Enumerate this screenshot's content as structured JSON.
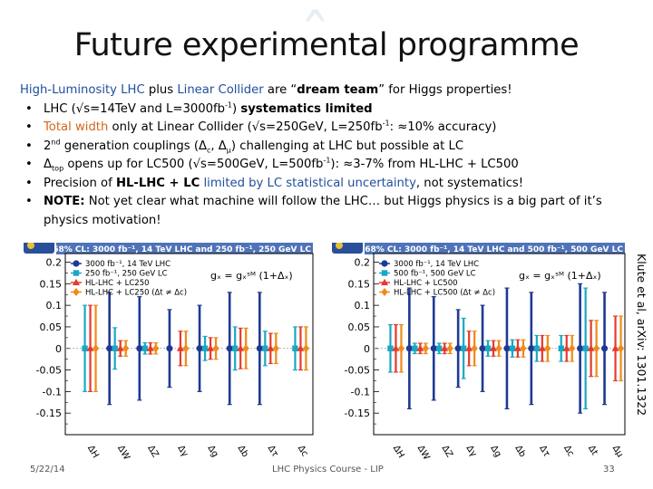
{
  "slide": {
    "title": "Future experimental programme",
    "lead": {
      "p1": "High-Luminosity LHC",
      "p2": " plus ",
      "p3": "Linear Collider",
      "p4": " are “",
      "p5": "dream team",
      "p6": "” for Higgs properties!"
    },
    "bullets": [
      {
        "a": "LHC (√s=14TeV and L=3000fb",
        "sup": "-1",
        "b": ") ",
        "c": "systematics limited"
      },
      {
        "a": "Total width",
        "b": " only at Linear Collider (√s=250GeV, L=250fb",
        "sup": "-1",
        "c": ": ≈10% accuracy)"
      },
      {
        "a": "2",
        "sup": "nd",
        "b": " generation couplings (Δ",
        "sub1": "c",
        "c": ", Δ",
        "sub2": "μ",
        "d": ") challenging at LHC but possible at LC"
      },
      {
        "a": "Δ",
        "sub": "top",
        "b": " opens up for LC500 (√s=500GeV, L=500fb",
        "sup": "-1",
        "c": "): ≈3-7% from HL-LHC + LC500"
      },
      {
        "a": "Precision of ",
        "b": "HL-LHC + LC",
        "c": " limited by LC statistical uncertainty",
        "d": ", not systematics!"
      },
      {
        "a": "NOTE:",
        "b": " Not yet clear what machine will follow the LHC… but Higgs physics is a big part of it’s physics motivation!"
      }
    ],
    "side_reference": "Klute et al, arXiv: 1301.1322",
    "footer": {
      "date": "5/22/14",
      "course": "LHC Physics Course - LIP",
      "page": "33"
    }
  },
  "colors": {
    "lhc3000": "#1f3a93",
    "lhc14": "#1f3a93",
    "lc250": "#1aa7c4",
    "lc500": "#1aa7c4",
    "hllhc_lc": "#e53b2c",
    "hllhc_lc_nc": "#f08a19",
    "header_bg": "#4f73b8"
  },
  "chart_data": [
    {
      "type": "scatter",
      "header": "68% CL: 3000 fb⁻¹, 14 TeV LHC and 250 fb⁻¹, 250 GeV LC",
      "formula": "gₓ = gₓˢᴹ (1+Δₓ)",
      "ylim": [
        -0.2,
        0.22
      ],
      "yticks": [
        "0.2",
        "0.15",
        "0.1",
        "0.05",
        "0",
        "-0.05",
        "-0.1",
        "-0.15"
      ],
      "categories": [
        "ΔH",
        "ΔW",
        "ΔZ",
        "Δγ",
        "Δg",
        "Δb",
        "Δτ",
        "Δc"
      ],
      "series": [
        {
          "name": "3000 fb⁻¹, 14 TeV LHC",
          "color": "#1f3a93",
          "values": [
            null,
            0.13,
            0.12,
            0.09,
            0.1,
            0.13,
            0.13,
            null
          ]
        },
        {
          "name": "250 fb⁻¹, 250 GeV LC",
          "color": "#1aa7c4",
          "values": [
            0.1,
            0.048,
            0.013,
            null,
            0.028,
            0.05,
            0.04,
            0.05
          ]
        },
        {
          "name": "HL-LHC + LC250",
          "color": "#e53b2c",
          "values": [
            0.1,
            0.018,
            0.013,
            0.04,
            0.025,
            0.047,
            0.035,
            0.05
          ]
        },
        {
          "name": "HL-LHC + LC250 (Δt ≠ Δc)",
          "color": "#f08a19",
          "values": [
            0.1,
            0.018,
            0.013,
            0.04,
            0.025,
            0.047,
            0.035,
            0.05
          ]
        }
      ],
      "legend": [
        "3000 fb⁻¹, 14 TeV LHC",
        "250 fb⁻¹, 250 GeV LC",
        "HL-LHC + LC250",
        "HL-LHC + LC250 (Δt ≠ Δc)"
      ]
    },
    {
      "type": "scatter",
      "header": "68% CL: 3000 fb⁻¹, 14 TeV LHC and 500 fb⁻¹, 500 GeV LC",
      "formula": "gₓ = gₓˢᴹ (1+Δₓ)",
      "ylim": [
        -0.2,
        0.22
      ],
      "yticks": [
        "0.2",
        "0.15",
        "0.1",
        "0.05",
        "0",
        "-0.05",
        "-0.1",
        "-0.15"
      ],
      "categories": [
        "ΔH",
        "ΔW",
        "ΔZ",
        "Δγ",
        "Δg",
        "Δb",
        "Δτ",
        "Δc",
        "Δt",
        "Δμ"
      ],
      "series": [
        {
          "name": "3000 fb⁻¹, 14 TeV LHC",
          "color": "#1f3a93",
          "values": [
            null,
            0.14,
            0.12,
            0.09,
            0.1,
            0.14,
            0.13,
            null,
            0.15,
            0.13
          ]
        },
        {
          "name": "500 fb⁻¹, 500 GeV LC",
          "color": "#1aa7c4",
          "values": [
            0.055,
            0.012,
            0.012,
            0.07,
            0.018,
            0.02,
            0.03,
            0.03,
            0.14,
            null
          ]
        },
        {
          "name": "HL-LHC + LC500",
          "color": "#e53b2c",
          "values": [
            0.055,
            0.012,
            0.012,
            0.04,
            0.018,
            0.02,
            0.03,
            0.03,
            0.065,
            0.075
          ]
        },
        {
          "name": "HL-LHC + LC500 (Δt ≠ Δc)",
          "color": "#f08a19",
          "values": [
            0.055,
            0.012,
            0.012,
            0.04,
            0.018,
            0.02,
            0.03,
            0.03,
            0.065,
            0.075
          ]
        }
      ],
      "legend": [
        "3000 fb⁻¹, 14 TeV LHC",
        "500 fb⁻¹, 500 GeV LC",
        "HL-LHC + LC500",
        "HL-LHC + LC500 (Δt ≠ Δc)"
      ]
    }
  ]
}
